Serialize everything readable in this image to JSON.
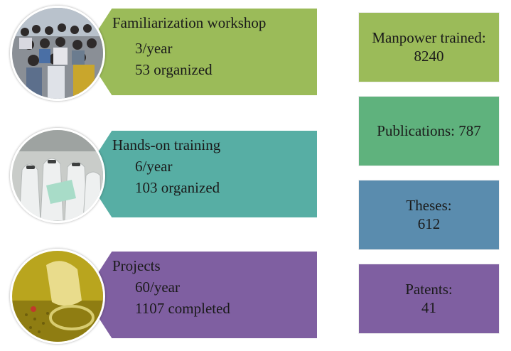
{
  "colors": {
    "green": "#9bbb59",
    "teal": "#57aea4",
    "purple": "#7f5fa1",
    "emerald": "#5fb27d",
    "steel_blue": "#5a8cae"
  },
  "activities": [
    {
      "title": "Familiarization  workshop",
      "line1": "3/year",
      "line2": "53 organized",
      "photo": "workshop-audience-photo"
    },
    {
      "title": "Hands-on training",
      "line1": "6/year",
      "line2": "103 organized",
      "photo": "cleanroom-training-photo"
    },
    {
      "title": "Projects",
      "line1": "60/year",
      "line2": "1107 completed",
      "photo": "lab-project-photo"
    }
  ],
  "stats": [
    {
      "label": "Manpower trained:",
      "value": "8240"
    },
    {
      "label": "Publications: 787",
      "value": ""
    },
    {
      "label": "Theses:",
      "value": "612"
    },
    {
      "label": "Patents:",
      "value": "41"
    }
  ]
}
